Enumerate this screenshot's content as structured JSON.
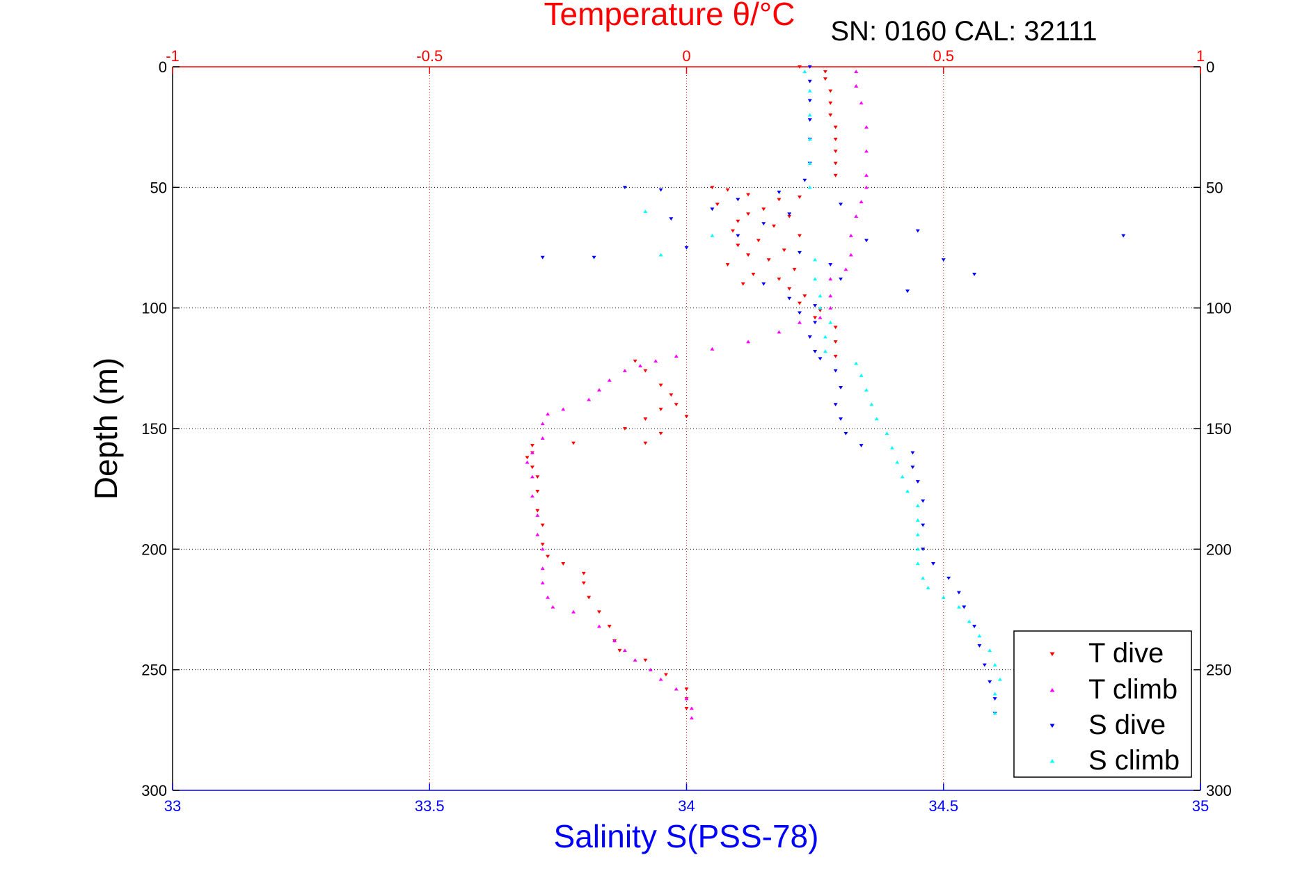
{
  "chart_data": {
    "type": "scatter",
    "title": "SN: 0160  CAL: 32111",
    "top_axis": {
      "label": "Temperature θ/°C",
      "range": [
        -1,
        1
      ],
      "ticks": [
        -1,
        -0.5,
        0,
        0.5,
        1
      ],
      "tick_labels": [
        "-1",
        "-0.5",
        "0",
        "0.5",
        "1"
      ],
      "color": "#ff0000"
    },
    "bottom_axis": {
      "label": "Salinity S(PSS-78)",
      "range": [
        33,
        35
      ],
      "ticks": [
        33,
        33.5,
        34,
        34.5,
        35
      ],
      "tick_labels": [
        "33",
        "33.5",
        "34",
        "34.5",
        "35"
      ],
      "color": "#0000ff"
    },
    "y_axis": {
      "label": "Depth (m)",
      "range": [
        0,
        300
      ],
      "reversed": true,
      "ticks": [
        0,
        50,
        100,
        150,
        200,
        250,
        300
      ],
      "tick_labels": [
        "0",
        "50",
        "100",
        "150",
        "200",
        "250",
        "300"
      ]
    },
    "grid": true,
    "legend": {
      "position": "bottom-right",
      "entries": [
        "T dive",
        "T climb",
        "S dive",
        "S climb"
      ]
    },
    "series": [
      {
        "name": "T dive",
        "axis": "temperature",
        "color": "#ff0000",
        "marker": "triangle-down",
        "points": [
          [
            0.22,
            0
          ],
          [
            0.27,
            2
          ],
          [
            0.27,
            5
          ],
          [
            0.28,
            10
          ],
          [
            0.28,
            15
          ],
          [
            0.28,
            20
          ],
          [
            0.29,
            25
          ],
          [
            0.29,
            30
          ],
          [
            0.29,
            35
          ],
          [
            0.29,
            40
          ],
          [
            0.29,
            45
          ],
          [
            0.05,
            50
          ],
          [
            0.08,
            51
          ],
          [
            0.12,
            53
          ],
          [
            0.22,
            54
          ],
          [
            0.18,
            55
          ],
          [
            0.06,
            57
          ],
          [
            0.15,
            59
          ],
          [
            0.12,
            61
          ],
          [
            0.2,
            62
          ],
          [
            0.1,
            64
          ],
          [
            0.17,
            66
          ],
          [
            0.09,
            68
          ],
          [
            0.22,
            70
          ],
          [
            0.14,
            72
          ],
          [
            0.1,
            74
          ],
          [
            0.19,
            76
          ],
          [
            0.12,
            78
          ],
          [
            0.16,
            80
          ],
          [
            0.08,
            82
          ],
          [
            0.21,
            84
          ],
          [
            0.13,
            86
          ],
          [
            0.18,
            88
          ],
          [
            0.11,
            90
          ],
          [
            0.2,
            92
          ],
          [
            0.23,
            95
          ],
          [
            0.22,
            98
          ],
          [
            0.26,
            101
          ],
          [
            0.25,
            104
          ],
          [
            0.29,
            108
          ],
          [
            0.29,
            114
          ],
          [
            0.29,
            120
          ],
          [
            -0.1,
            122
          ],
          [
            -0.08,
            126
          ],
          [
            -0.05,
            132
          ],
          [
            -0.03,
            136
          ],
          [
            -0.02,
            140
          ],
          [
            -0.05,
            142
          ],
          [
            0.0,
            145
          ],
          [
            -0.08,
            146
          ],
          [
            -0.12,
            150
          ],
          [
            -0.05,
            152
          ],
          [
            -0.08,
            156
          ],
          [
            -0.22,
            156
          ],
          [
            -0.3,
            157
          ],
          [
            -0.3,
            160
          ],
          [
            -0.31,
            162
          ],
          [
            -0.3,
            166
          ],
          [
            -0.29,
            170
          ],
          [
            -0.29,
            176
          ],
          [
            -0.29,
            184
          ],
          [
            -0.28,
            190
          ],
          [
            -0.28,
            198
          ],
          [
            -0.27,
            203
          ],
          [
            -0.24,
            206
          ],
          [
            -0.2,
            210
          ],
          [
            -0.2,
            214
          ],
          [
            -0.19,
            220
          ],
          [
            -0.17,
            226
          ],
          [
            -0.15,
            232
          ],
          [
            -0.14,
            238
          ],
          [
            -0.13,
            242
          ],
          [
            -0.08,
            246
          ],
          [
            -0.04,
            252
          ],
          [
            0.0,
            258
          ],
          [
            0.0,
            262
          ],
          [
            0.0,
            266
          ]
        ]
      },
      {
        "name": "T climb",
        "axis": "temperature",
        "color": "#ff00ff",
        "marker": "triangle-up",
        "points": [
          [
            0.33,
            2
          ],
          [
            0.33,
            8
          ],
          [
            0.34,
            15
          ],
          [
            0.35,
            25
          ],
          [
            0.35,
            35
          ],
          [
            0.35,
            45
          ],
          [
            0.35,
            50
          ],
          [
            0.34,
            56
          ],
          [
            0.33,
            62
          ],
          [
            0.32,
            70
          ],
          [
            0.32,
            78
          ],
          [
            0.31,
            84
          ],
          [
            0.28,
            88
          ],
          [
            0.28,
            95
          ],
          [
            0.28,
            100
          ],
          [
            0.26,
            104
          ],
          [
            0.22,
            106
          ],
          [
            0.18,
            110
          ],
          [
            0.12,
            114
          ],
          [
            0.05,
            117
          ],
          [
            -0.02,
            120
          ],
          [
            -0.06,
            122
          ],
          [
            -0.09,
            124
          ],
          [
            -0.12,
            126
          ],
          [
            -0.15,
            130
          ],
          [
            -0.17,
            134
          ],
          [
            -0.19,
            138
          ],
          [
            -0.24,
            142
          ],
          [
            -0.27,
            144
          ],
          [
            -0.28,
            148
          ],
          [
            -0.28,
            154
          ],
          [
            -0.3,
            160
          ],
          [
            -0.31,
            164
          ],
          [
            -0.3,
            170
          ],
          [
            -0.3,
            178
          ],
          [
            -0.29,
            186
          ],
          [
            -0.29,
            194
          ],
          [
            -0.28,
            200
          ],
          [
            -0.28,
            208
          ],
          [
            -0.28,
            214
          ],
          [
            -0.27,
            220
          ],
          [
            -0.26,
            224
          ],
          [
            -0.22,
            226
          ],
          [
            -0.17,
            232
          ],
          [
            -0.14,
            238
          ],
          [
            -0.12,
            242
          ],
          [
            -0.1,
            246
          ],
          [
            -0.07,
            250
          ],
          [
            -0.05,
            254
          ],
          [
            -0.02,
            258
          ],
          [
            0.0,
            262
          ],
          [
            0.01,
            266
          ],
          [
            0.01,
            270
          ]
        ]
      },
      {
        "name": "S dive",
        "axis": "salinity",
        "color": "#0000ff",
        "marker": "triangle-down",
        "points": [
          [
            34.24,
            0
          ],
          [
            34.24,
            6
          ],
          [
            34.24,
            14
          ],
          [
            34.24,
            22
          ],
          [
            34.24,
            30
          ],
          [
            34.24,
            40
          ],
          [
            34.23,
            47
          ],
          [
            33.88,
            50
          ],
          [
            33.95,
            51
          ],
          [
            34.18,
            52
          ],
          [
            34.1,
            55
          ],
          [
            34.3,
            57
          ],
          [
            34.05,
            59
          ],
          [
            34.2,
            61
          ],
          [
            33.97,
            63
          ],
          [
            34.15,
            65
          ],
          [
            34.45,
            68
          ],
          [
            34.85,
            70
          ],
          [
            34.1,
            70
          ],
          [
            34.35,
            72
          ],
          [
            34.0,
            75
          ],
          [
            34.22,
            77
          ],
          [
            33.72,
            79
          ],
          [
            33.82,
            79
          ],
          [
            34.5,
            80
          ],
          [
            34.28,
            82
          ],
          [
            34.56,
            86
          ],
          [
            34.3,
            88
          ],
          [
            34.15,
            90
          ],
          [
            34.43,
            93
          ],
          [
            34.2,
            96
          ],
          [
            34.25,
            99
          ],
          [
            34.22,
            102
          ],
          [
            34.25,
            106
          ],
          [
            34.24,
            112
          ],
          [
            34.25,
            118
          ],
          [
            34.26,
            121
          ],
          [
            34.29,
            126
          ],
          [
            34.3,
            133
          ],
          [
            34.29,
            140
          ],
          [
            34.3,
            146
          ],
          [
            34.31,
            152
          ],
          [
            34.34,
            157
          ],
          [
            34.44,
            160
          ],
          [
            34.44,
            166
          ],
          [
            34.45,
            172
          ],
          [
            34.46,
            180
          ],
          [
            34.46,
            190
          ],
          [
            34.46,
            200
          ],
          [
            34.48,
            206
          ],
          [
            34.51,
            212
          ],
          [
            34.53,
            218
          ],
          [
            34.54,
            224
          ],
          [
            34.56,
            232
          ],
          [
            34.57,
            240
          ],
          [
            34.58,
            248
          ],
          [
            34.59,
            255
          ],
          [
            34.6,
            262
          ],
          [
            34.6,
            268
          ]
        ]
      },
      {
        "name": "S climb",
        "axis": "salinity",
        "color": "#00ffff",
        "marker": "triangle-up",
        "points": [
          [
            34.23,
            2
          ],
          [
            34.24,
            10
          ],
          [
            34.24,
            20
          ],
          [
            34.24,
            30
          ],
          [
            34.24,
            40
          ],
          [
            34.24,
            50
          ],
          [
            33.92,
            60
          ],
          [
            34.05,
            70
          ],
          [
            33.95,
            78
          ],
          [
            34.25,
            80
          ],
          [
            34.25,
            88
          ],
          [
            34.26,
            95
          ],
          [
            34.26,
            100
          ],
          [
            34.28,
            106
          ],
          [
            34.27,
            112
          ],
          [
            34.27,
            118
          ],
          [
            34.33,
            123
          ],
          [
            34.34,
            128
          ],
          [
            34.35,
            134
          ],
          [
            34.36,
            140
          ],
          [
            34.37,
            146
          ],
          [
            34.39,
            152
          ],
          [
            34.4,
            158
          ],
          [
            34.41,
            164
          ],
          [
            34.42,
            170
          ],
          [
            34.43,
            176
          ],
          [
            34.45,
            182
          ],
          [
            34.45,
            188
          ],
          [
            34.45,
            194
          ],
          [
            34.45,
            200
          ],
          [
            34.45,
            206
          ],
          [
            34.46,
            212
          ],
          [
            34.47,
            216
          ],
          [
            34.5,
            220
          ],
          [
            34.53,
            224
          ],
          [
            34.55,
            230
          ],
          [
            34.57,
            236
          ],
          [
            34.59,
            242
          ],
          [
            34.6,
            248
          ],
          [
            34.61,
            254
          ],
          [
            34.6,
            260
          ],
          [
            34.6,
            268
          ]
        ]
      }
    ]
  }
}
